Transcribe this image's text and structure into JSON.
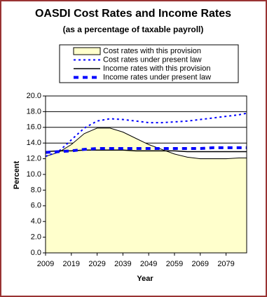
{
  "chart_data": {
    "type": "line",
    "title": "OASDI Cost Rates and Income Rates",
    "subtitle": "(as a percentage of taxable payroll)",
    "x_label": "Year",
    "y_label": "Percent",
    "x": [
      2009,
      2014,
      2019,
      2024,
      2029,
      2034,
      2039,
      2044,
      2049,
      2054,
      2059,
      2064,
      2069,
      2074,
      2079,
      2084,
      2087
    ],
    "series": [
      {
        "name": "Cost rates with this provision",
        "color": "#ffffcc",
        "style": "area",
        "values": [
          12.3,
          12.8,
          13.8,
          15.2,
          15.9,
          15.9,
          15.4,
          14.6,
          13.8,
          13.2,
          12.6,
          12.2,
          12.0,
          12.0,
          12.0,
          12.1,
          12.1
        ]
      },
      {
        "name": "Cost rates under present law",
        "color": "#0000ff",
        "style": "dotted",
        "values": [
          12.3,
          12.9,
          14.4,
          15.9,
          16.8,
          17.1,
          17.0,
          16.8,
          16.6,
          16.6,
          16.7,
          16.8,
          17.0,
          17.2,
          17.4,
          17.6,
          17.8
        ]
      },
      {
        "name": "Income rates with this provision",
        "color": "#000000",
        "style": "solid",
        "values": [
          12.9,
          13.0,
          13.0,
          13.1,
          13.1,
          13.1,
          13.1,
          13.0,
          13.0,
          13.0,
          13.0,
          12.9,
          12.9,
          12.9,
          12.9,
          12.9,
          12.9
        ]
      },
      {
        "name": "Income rates under present law",
        "color": "#0000ff",
        "style": "dashed",
        "values": [
          12.8,
          12.9,
          13.0,
          13.2,
          13.3,
          13.3,
          13.3,
          13.3,
          13.3,
          13.3,
          13.3,
          13.3,
          13.3,
          13.4,
          13.4,
          13.4,
          13.4
        ]
      }
    ],
    "xlim": [
      2009,
      2087
    ],
    "xticks": [
      2009,
      2019,
      2029,
      2039,
      2049,
      2059,
      2069,
      2079
    ],
    "ylim": [
      0,
      20
    ],
    "yticks": [
      {
        "value": 0,
        "label": "0.0"
      },
      {
        "value": 2,
        "label": "2.0"
      },
      {
        "value": 4,
        "label": "4.0"
      },
      {
        "value": 6,
        "label": "6.0"
      },
      {
        "value": 8,
        "label": "8.0"
      },
      {
        "value": 10,
        "label": "10.0"
      },
      {
        "value": 12,
        "label": "12.0"
      },
      {
        "value": 14,
        "label": "14.0"
      },
      {
        "value": 16,
        "label": "16.0"
      },
      {
        "value": 18,
        "label": "18.0"
      },
      {
        "value": 20,
        "label": "20.0"
      }
    ],
    "grid": true,
    "legend": "top"
  }
}
